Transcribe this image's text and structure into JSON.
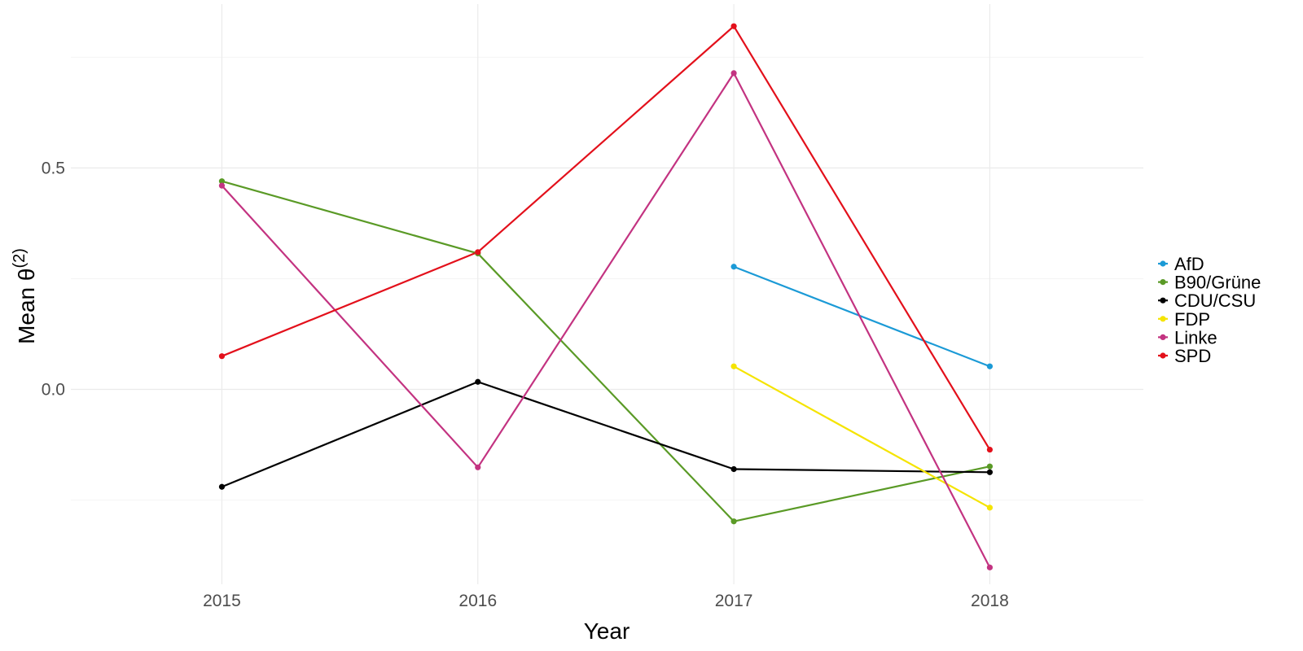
{
  "chart_data": {
    "type": "line",
    "title": "",
    "xlabel": "Year",
    "ylabel_main": "Mean θ",
    "ylabel_sup": "(2)",
    "x": [
      2015,
      2016,
      2017,
      2018
    ],
    "xticks": [
      "2015",
      "2016",
      "2017",
      "2018"
    ],
    "yticks": [
      {
        "value": 0.0,
        "label": "0.0"
      },
      {
        "value": 0.5,
        "label": "0.5"
      }
    ],
    "xlim": [
      2014.41,
      2018.6
    ],
    "ylim": [
      -0.44,
      0.87
    ],
    "grid": true,
    "legend_position": "right",
    "series": [
      {
        "name": "AfD",
        "color": "#1b9ad6",
        "values": [
          null,
          null,
          0.277,
          0.052
        ]
      },
      {
        "name": "B90/Grüne",
        "color": "#5a9a26",
        "values": [
          0.47,
          0.307,
          -0.298,
          -0.174
        ]
      },
      {
        "name": "CDU/CSU",
        "color": "#000000",
        "values": [
          -0.22,
          0.017,
          -0.18,
          -0.187
        ]
      },
      {
        "name": "FDP",
        "color": "#f5e400",
        "values": [
          null,
          null,
          0.052,
          -0.267
        ]
      },
      {
        "name": "Linke",
        "color": "#c33381",
        "values": [
          0.46,
          -0.176,
          0.714,
          -0.402
        ]
      },
      {
        "name": "SPD",
        "color": "#e3101b",
        "values": [
          0.075,
          0.31,
          0.82,
          -0.136
        ]
      }
    ]
  }
}
